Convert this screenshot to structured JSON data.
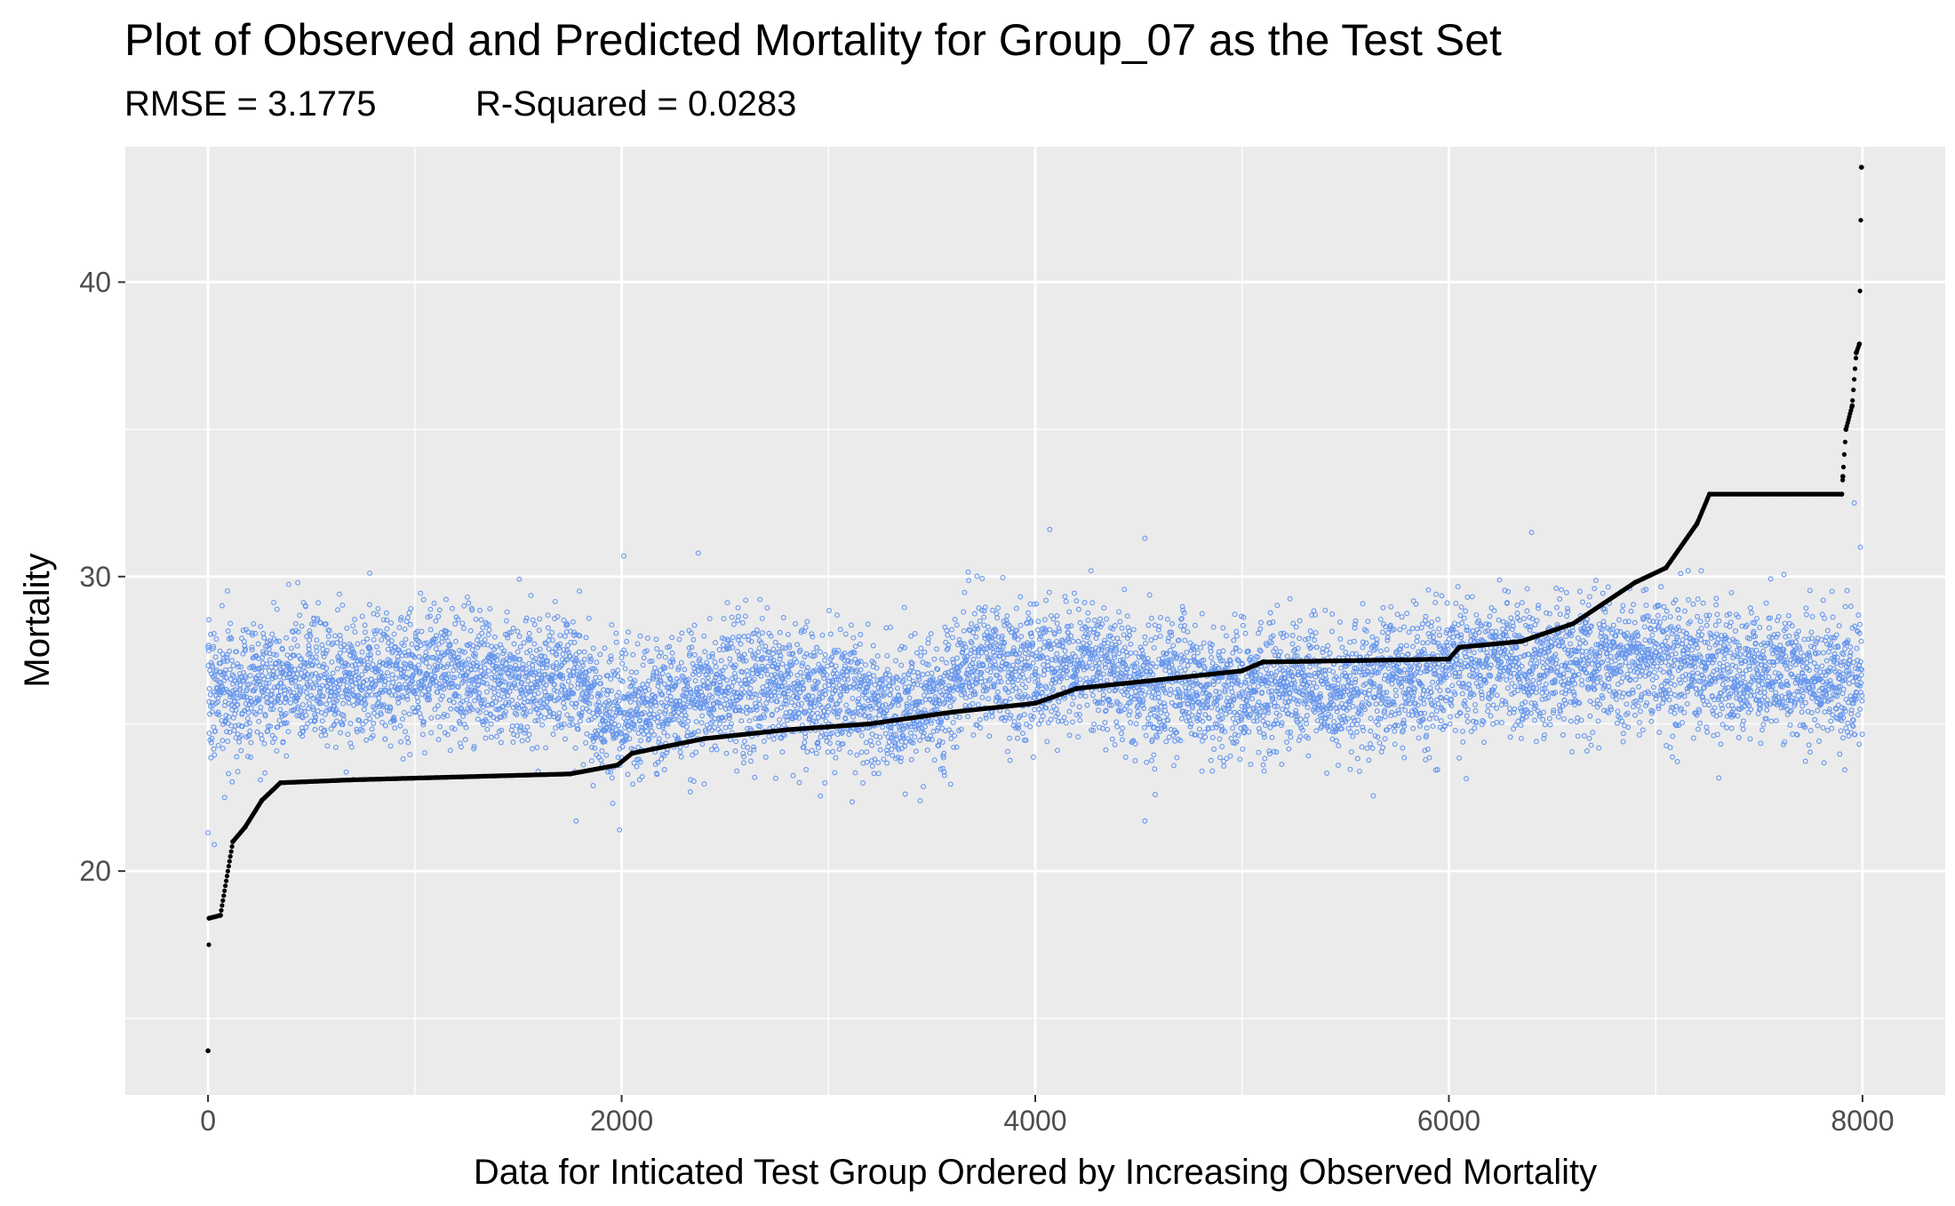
{
  "chart_data": {
    "type": "scatter",
    "title": "Plot of Observed and Predicted Mortality for Group_07 as the Test Set",
    "subtitle_parts": [
      "RMSE = 3.1775",
      "R-Squared = 0.0283"
    ],
    "xlabel": "Data for Inticated Test Group Ordered by Increasing Observed Mortality",
    "ylabel": "Mortality",
    "xlim": [
      -400,
      8400
    ],
    "ylim": [
      12.4,
      44.6
    ],
    "x_ticks": [
      0,
      2000,
      4000,
      6000,
      8000
    ],
    "x_tick_labels": [
      "0",
      "2000",
      "4000",
      "6000",
      "8000"
    ],
    "y_ticks": [
      20,
      30,
      40
    ],
    "y_tick_labels": [
      "20",
      "30",
      "40"
    ],
    "grid": true,
    "legend": "none",
    "background_color": "#ebebeb",
    "gridline_color": "#ffffff",
    "series": [
      {
        "role": "observed",
        "marker": "hollow-circle",
        "color": "#6495ed",
        "n_points": 8000,
        "trend_baseline": [
          [
            0,
            26.0
          ],
          [
            350,
            26.3
          ],
          [
            700,
            26.7
          ],
          [
            1800,
            26.5
          ],
          [
            1900,
            25.3
          ],
          [
            2300,
            25.7
          ],
          [
            2500,
            26.3
          ],
          [
            3000,
            26.0
          ],
          [
            3300,
            25.5
          ],
          [
            3600,
            26.0
          ],
          [
            3700,
            27.5
          ],
          [
            3900,
            26.7
          ],
          [
            4200,
            27.0
          ],
          [
            4500,
            26.5
          ],
          [
            5000,
            26.0
          ],
          [
            5600,
            26.3
          ],
          [
            6000,
            26.8
          ],
          [
            6500,
            27.0
          ],
          [
            7000,
            27.2
          ],
          [
            7300,
            26.8
          ],
          [
            8000,
            26.5
          ]
        ],
        "spread_sd": 1.1,
        "notable_points": [
          [
            0,
            21.3
          ],
          [
            30,
            20.9
          ],
          [
            80,
            22.5
          ],
          [
            1780,
            21.7
          ],
          [
            1990,
            21.4
          ],
          [
            2010,
            30.7
          ],
          [
            2370,
            30.8
          ],
          [
            4070,
            31.6
          ],
          [
            4530,
            21.7
          ],
          [
            4580,
            22.6
          ],
          [
            4530,
            31.3
          ],
          [
            6400,
            31.5
          ],
          [
            7960,
            32.5
          ],
          [
            7990,
            31.0
          ]
        ]
      },
      {
        "role": "predicted",
        "marker": "filled-point",
        "color": "#000000",
        "n_points": 8000,
        "curve": [
          [
            0,
            13.9
          ],
          [
            5,
            18.4
          ],
          [
            60,
            18.5
          ],
          [
            120,
            21.0
          ],
          [
            180,
            21.5
          ],
          [
            260,
            22.4
          ],
          [
            350,
            23.0
          ],
          [
            700,
            23.1
          ],
          [
            1750,
            23.3
          ],
          [
            1980,
            23.6
          ],
          [
            2050,
            24.0
          ],
          [
            2400,
            24.5
          ],
          [
            2800,
            24.8
          ],
          [
            3200,
            25.0
          ],
          [
            3600,
            25.4
          ],
          [
            4000,
            25.7
          ],
          [
            4200,
            26.2
          ],
          [
            4600,
            26.5
          ],
          [
            5000,
            26.8
          ],
          [
            5100,
            27.1
          ],
          [
            6000,
            27.2
          ],
          [
            6050,
            27.6
          ],
          [
            6350,
            27.8
          ],
          [
            6600,
            28.4
          ],
          [
            6900,
            29.8
          ],
          [
            7050,
            30.3
          ],
          [
            7200,
            31.8
          ],
          [
            7260,
            32.8
          ],
          [
            7900,
            32.8
          ],
          [
            7905,
            33.4
          ],
          [
            7920,
            35.0
          ],
          [
            7950,
            35.8
          ],
          [
            7970,
            37.6
          ],
          [
            7985,
            37.9
          ],
          [
            7995,
            43.9
          ]
        ]
      }
    ]
  }
}
